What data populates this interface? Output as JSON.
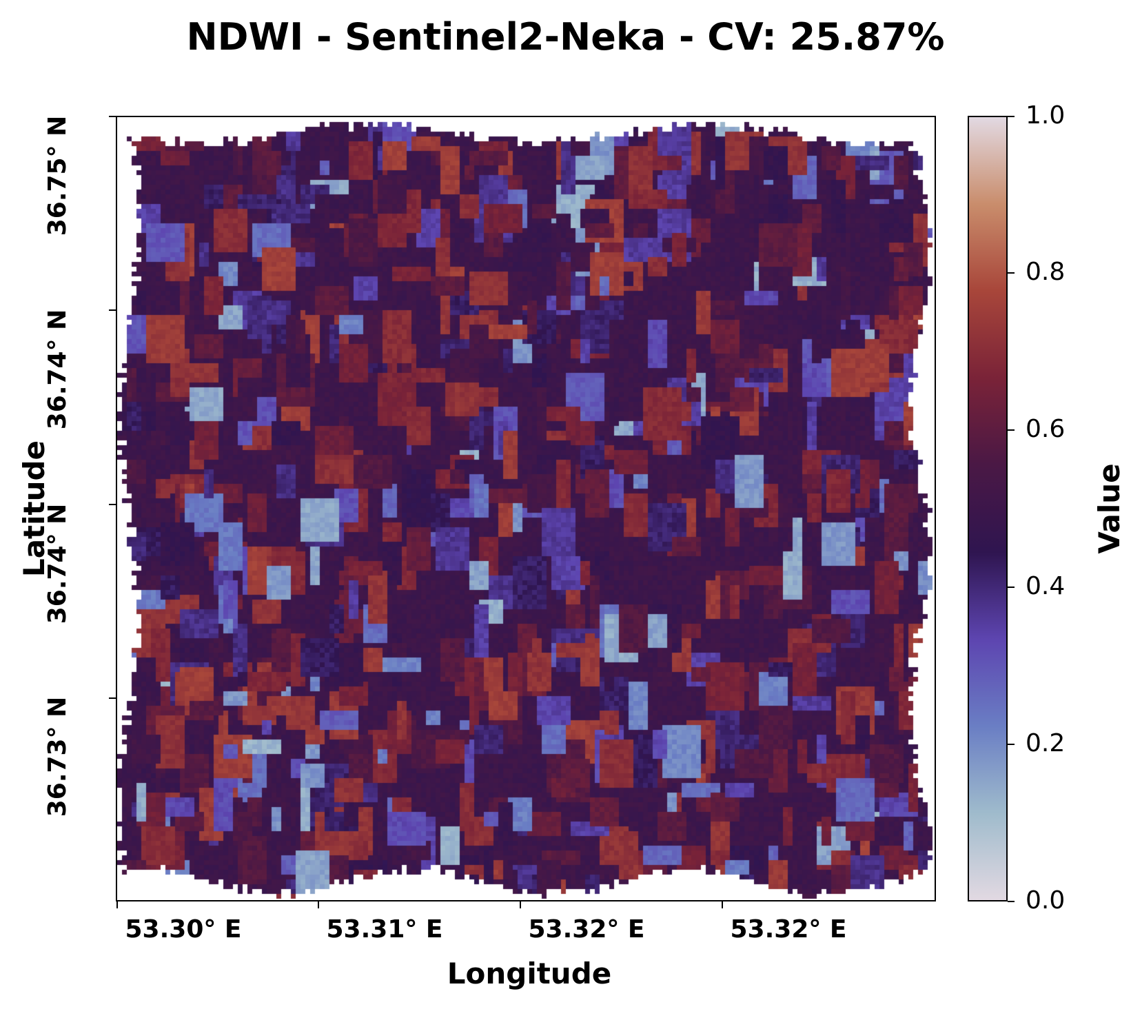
{
  "title": "NDWI - Sentinel2-Neka - CV: 25.87%",
  "xlabel": "Longitude",
  "ylabel": "Latitude",
  "x_ticks": [
    "53.30° E",
    "53.31° E",
    "53.32° E",
    "53.32° E"
  ],
  "y_ticks": [
    "36.75° N",
    "36.74° N",
    "36.74° N",
    "36.73° N"
  ],
  "colorbar": {
    "label": "Value",
    "min": 0.0,
    "max": 1.0,
    "ticks": [
      "0.0",
      "0.2",
      "0.4",
      "0.6",
      "0.8",
      "1.0"
    ],
    "colormap": "twilight_shifted",
    "colors": [
      "#e2d9e2",
      "#9fbbcc",
      "#6a7ec4",
      "#5d45b0",
      "#2f1550",
      "#4a1845",
      "#7a2338",
      "#a8463a",
      "#c98d6c",
      "#e2d9e2"
    ]
  },
  "raster": {
    "description_values": "NDWI per-pixel values mostly between 0.3 and 0.75",
    "value_range": [
      0.0,
      1.0
    ]
  }
}
